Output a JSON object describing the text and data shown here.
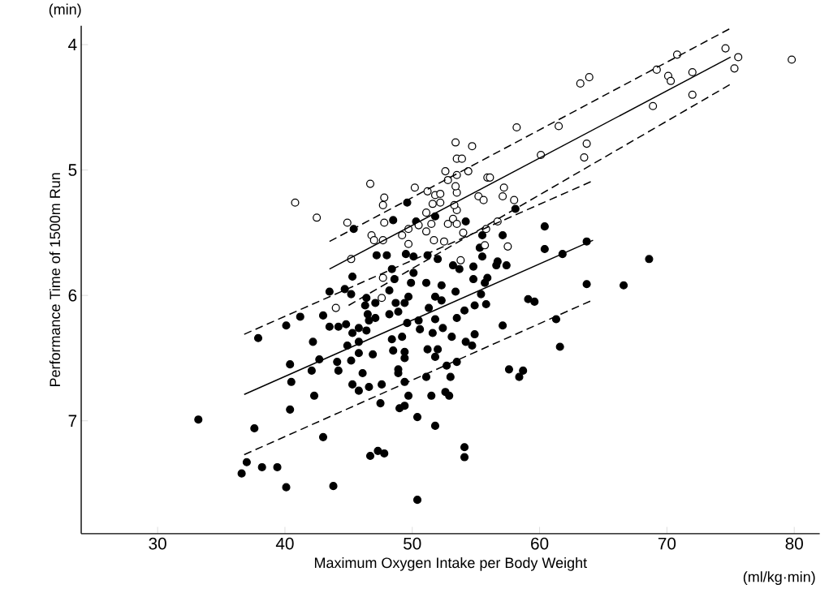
{
  "chart_data": {
    "type": "scatter",
    "xlabel": "Maximum Oxygen Intake per Body Weight",
    "ylabel": "Performance Time of 1500m Run",
    "annotations": [
      "(min)",
      "(ml/kg·min)"
    ],
    "xlim": [
      24,
      82
    ],
    "xticks": [
      30,
      40,
      50,
      60,
      70,
      80
    ],
    "ylim": [
      7.9,
      3.85
    ],
    "yticks": [
      4,
      5,
      6,
      7
    ],
    "series": [
      {
        "marker": "circle",
        "color": "#000000",
        "x": [
          33.2,
          36.6,
          37.0,
          38.2,
          39.4,
          40.1,
          43.8,
          46.7,
          47.3,
          47.8,
          37.6,
          43.0,
          40.4,
          42.3,
          47.5,
          37.9,
          40.1,
          41.2,
          43.5,
          44.7,
          45.3,
          42.2,
          43.0,
          43.5,
          44.2,
          44.8,
          45.3,
          45.8,
          45.8,
          44.9,
          42.7,
          44.1,
          44.2,
          45.2,
          45.8,
          46.9,
          46.1,
          45.3,
          45.8,
          46.6,
          47.6,
          40.4,
          40.5,
          42.1,
          46.4,
          46.3,
          46.5,
          46.6,
          47.1,
          45.2,
          47.2,
          48.0,
          49.5,
          50.1,
          51.2,
          52.0,
          53.2,
          53.7,
          48.4,
          48.6,
          50.1,
          49.9,
          51.1,
          52.3,
          53.4,
          48.2,
          49.7,
          51.8,
          48.7,
          49.4,
          52.3,
          51.3,
          54.1,
          48.2,
          48.9,
          47.1,
          49.6,
          50.5,
          51.8,
          52.4,
          46.4,
          50.6,
          49.2,
          48.4,
          51.6,
          53.1,
          54.2,
          48.5,
          49.4,
          51.2,
          52.0,
          51.8,
          49.4,
          48.9,
          48.9,
          51.1,
          52.7,
          53.0,
          53.5,
          49.4,
          49.0,
          49.4,
          49.7,
          51.5,
          52.6,
          52.9,
          50.4,
          51.8,
          54.1,
          54.1,
          50.4,
          58.1,
          60.4,
          54.2,
          55.5,
          57.1,
          60.4,
          55.3,
          55.5,
          56.7,
          57.4,
          56.6,
          54.8,
          63.7,
          61.8,
          68.6,
          54.8,
          55.9,
          55.7,
          55.4,
          63.7,
          66.6,
          59.1,
          59.6,
          55.8,
          54.9,
          53.5,
          57.1,
          61.3,
          54.9,
          54.7,
          61.6,
          57.6,
          58.7,
          58.4,
          49.6,
          45.4,
          48.5,
          50.3,
          51.8
        ],
        "values": [
          6.99,
          7.42,
          7.33,
          7.37,
          7.37,
          7.53,
          7.52,
          7.28,
          7.24,
          7.26,
          7.06,
          7.13,
          6.91,
          6.8,
          6.86,
          6.34,
          6.24,
          6.17,
          5.97,
          5.95,
          5.85,
          6.37,
          6.16,
          6.25,
          6.25,
          6.23,
          6.3,
          6.26,
          6.37,
          6.4,
          6.51,
          6.53,
          6.6,
          6.52,
          6.46,
          6.47,
          6.62,
          6.71,
          6.76,
          6.73,
          6.71,
          6.55,
          6.69,
          6.6,
          6.02,
          6.08,
          6.15,
          6.2,
          6.06,
          5.99,
          5.68,
          5.68,
          5.67,
          5.69,
          5.68,
          5.71,
          5.76,
          5.79,
          5.79,
          5.87,
          5.82,
          5.9,
          5.9,
          5.92,
          5.97,
          5.96,
          6.01,
          6.01,
          6.06,
          6.06,
          6.04,
          6.1,
          6.12,
          6.15,
          6.13,
          6.18,
          6.22,
          6.2,
          6.19,
          6.26,
          6.28,
          6.27,
          6.33,
          6.35,
          6.3,
          6.33,
          6.37,
          6.44,
          6.45,
          6.43,
          6.43,
          6.49,
          6.5,
          6.59,
          6.62,
          6.65,
          6.56,
          6.65,
          6.53,
          6.69,
          6.9,
          6.88,
          6.8,
          6.8,
          6.77,
          6.8,
          6.97,
          7.04,
          7.21,
          7.29,
          7.63,
          5.31,
          5.45,
          5.41,
          5.52,
          5.52,
          5.63,
          5.62,
          5.69,
          5.73,
          5.76,
          5.76,
          5.77,
          5.57,
          5.67,
          5.71,
          5.87,
          5.86,
          5.9,
          5.99,
          5.91,
          5.92,
          6.03,
          6.05,
          6.07,
          6.08,
          6.18,
          6.24,
          6.19,
          6.31,
          6.4,
          6.41,
          6.59,
          6.6,
          6.65,
          5.26,
          5.47,
          5.4,
          5.41,
          5.37
        ]
      },
      {
        "marker": "circle",
        "color": "#ffffff",
        "x": [
          63.2,
          63.9,
          61.5,
          60.1,
          63.7,
          63.5,
          68.9,
          69.2,
          70.8,
          70.1,
          70.3,
          72.0,
          72.0,
          74.6,
          75.6,
          75.3,
          79.8,
          40.8,
          42.5,
          44.9,
          46.7,
          47.8,
          47.7,
          50.2,
          46.8,
          47.0,
          47.7,
          45.2,
          47.8,
          49.2,
          49.7,
          49.7,
          50.5,
          51.1,
          51.2,
          51.8,
          52.2,
          52.2,
          51.6,
          51.1,
          51.5,
          51.7,
          52.5,
          52.8,
          53.2,
          53.5,
          54.0,
          53.5,
          53.3,
          53.5,
          53.4,
          52.8,
          52.6,
          53.5,
          54.4,
          53.4,
          54.7,
          53.5,
          53.9,
          53.8,
          58.2,
          55.9,
          56.1,
          57.2,
          57.1,
          55.2,
          55.6,
          58.0,
          56.7,
          55.8,
          57.5,
          55.7,
          44.0,
          47.7,
          47.6
        ],
        "values": [
          4.31,
          4.26,
          4.65,
          4.88,
          4.79,
          4.9,
          4.49,
          4.2,
          4.08,
          4.25,
          4.29,
          4.22,
          4.4,
          4.03,
          4.1,
          4.19,
          4.12,
          5.26,
          5.38,
          5.42,
          5.11,
          5.22,
          5.28,
          5.14,
          5.52,
          5.56,
          5.56,
          5.71,
          5.42,
          5.52,
          5.59,
          5.47,
          5.44,
          5.34,
          5.17,
          5.2,
          5.19,
          5.26,
          5.27,
          5.49,
          5.43,
          5.56,
          5.57,
          5.43,
          5.39,
          5.43,
          5.5,
          5.32,
          5.28,
          5.18,
          5.13,
          5.08,
          5.01,
          5.04,
          5.01,
          4.78,
          4.81,
          4.91,
          4.91,
          5.72,
          4.66,
          5.06,
          5.06,
          5.14,
          5.21,
          5.21,
          5.24,
          5.24,
          5.41,
          5.47,
          5.61,
          5.6,
          6.1,
          5.86,
          6.02
        ]
      },
      {
        "type": "line",
        "line_style": "solid",
        "color": "#000000",
        "x": [
          43.5,
          75.0
        ],
        "values": [
          5.79,
          4.1
        ]
      },
      {
        "type": "line",
        "line_style": "dashed",
        "color": "#000000",
        "x": [
          43.5,
          75.0
        ],
        "values": [
          5.57,
          3.87
        ]
      },
      {
        "type": "line",
        "line_style": "dashed",
        "color": "#000000",
        "x": [
          45.0,
          75.1
        ],
        "values": [
          6.08,
          4.31
        ]
      },
      {
        "type": "line",
        "line_style": "solid",
        "color": "#000000",
        "x": [
          36.8,
          64.2
        ],
        "values": [
          6.79,
          5.56
        ]
      },
      {
        "type": "line",
        "line_style": "dashed",
        "color": "#000000",
        "x": [
          36.8,
          64.1
        ],
        "values": [
          6.31,
          5.09
        ]
      },
      {
        "type": "line",
        "line_style": "dashed",
        "color": "#000000",
        "x": [
          36.8,
          64.1
        ],
        "values": [
          7.27,
          6.04
        ]
      }
    ]
  }
}
